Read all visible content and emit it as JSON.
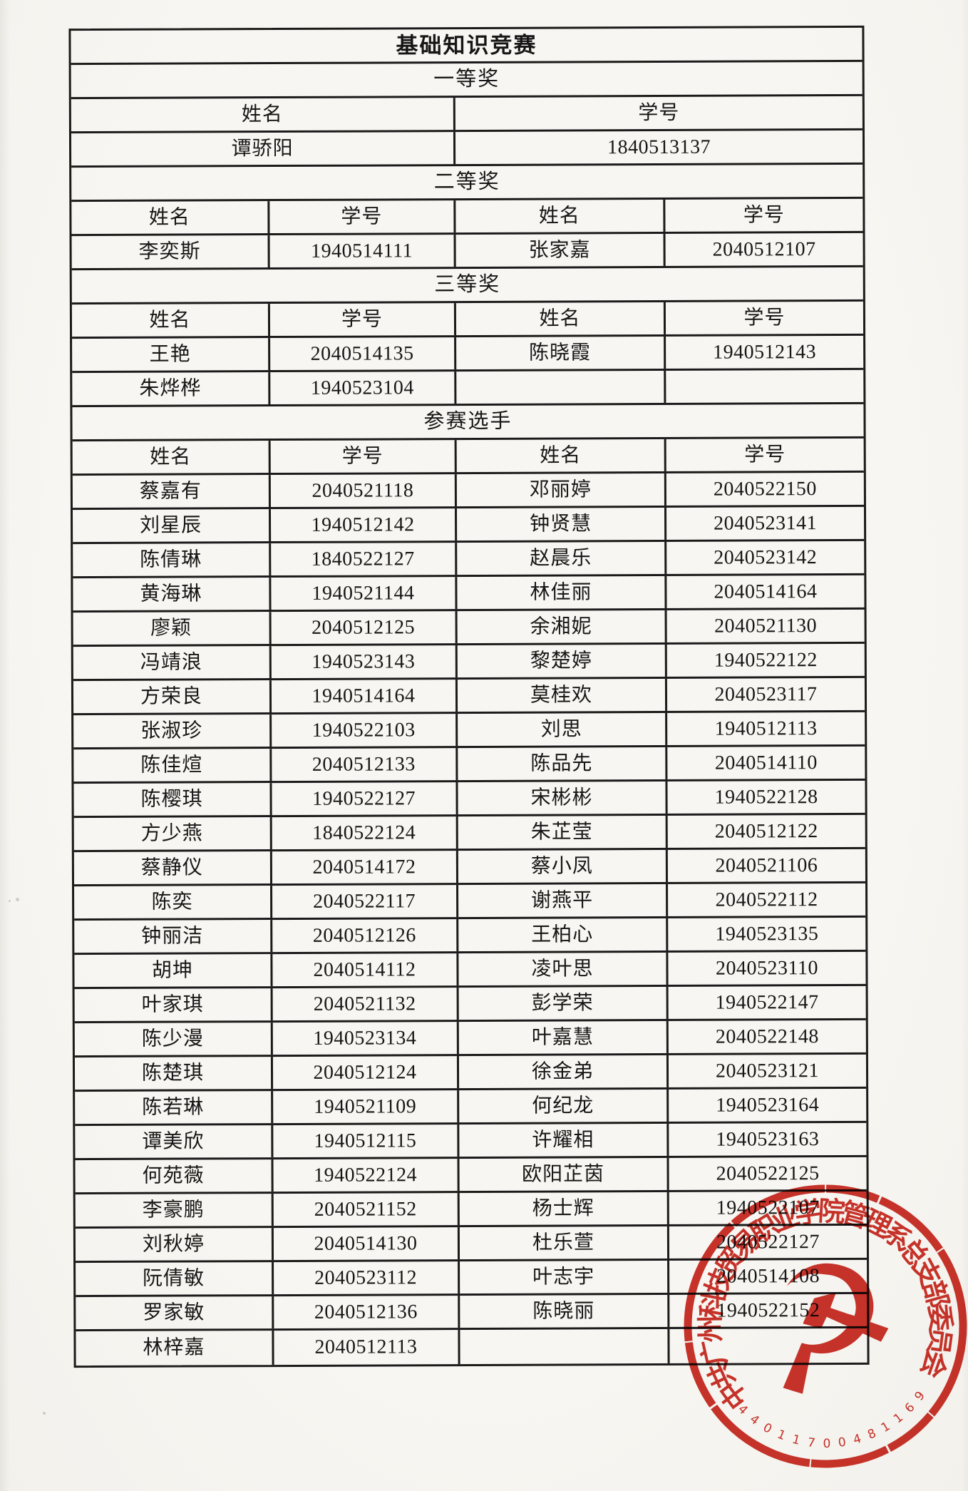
{
  "document": {
    "title": "基础知识竞赛",
    "headers": {
      "name": "姓名",
      "id": "学号"
    },
    "sections": [
      {
        "label": "一等奖",
        "layout": "two-col",
        "rows": [
          [
            "谭骄阳",
            "1840513137"
          ]
        ]
      },
      {
        "label": "二等奖",
        "layout": "four-col",
        "rows": [
          [
            "李奕斯",
            "1940514111",
            "张家嘉",
            "2040512107"
          ]
        ]
      },
      {
        "label": "三等奖",
        "layout": "four-col",
        "rows": [
          [
            "王艳",
            "2040514135",
            "陈晓霞",
            "1940512143"
          ],
          [
            "朱烨桦",
            "1940523104",
            "",
            ""
          ]
        ]
      },
      {
        "label": "参赛选手",
        "layout": "four-col",
        "rows": [
          [
            "蔡嘉有",
            "2040521118",
            "邓丽婷",
            "2040522150"
          ],
          [
            "刘星辰",
            "1940512142",
            "钟贤慧",
            "2040523141"
          ],
          [
            "陈倩琳",
            "1840522127",
            "赵晨乐",
            "2040523142"
          ],
          [
            "黄海琳",
            "1940521144",
            "林佳丽",
            "2040514164"
          ],
          [
            "廖颖",
            "2040512125",
            "余湘妮",
            "2040521130"
          ],
          [
            "冯靖浪",
            "1940523143",
            "黎楚婷",
            "1940522122"
          ],
          [
            "方荣良",
            "1940514164",
            "莫桂欢",
            "2040523117"
          ],
          [
            "张淑珍",
            "1940522103",
            "刘思",
            "1940512113"
          ],
          [
            "陈佳煊",
            "2040512133",
            "陈品先",
            "2040514110"
          ],
          [
            "陈樱琪",
            "1940522127",
            "宋彬彬",
            "1940522128"
          ],
          [
            "方少燕",
            "1840522124",
            "朱芷莹",
            "2040512122"
          ],
          [
            "蔡静仪",
            "2040514172",
            "蔡小凤",
            "2040521106"
          ],
          [
            "陈奕",
            "2040522117",
            "谢燕平",
            "2040522112"
          ],
          [
            "钟丽洁",
            "2040512126",
            "王柏心",
            "1940523135"
          ],
          [
            "胡坤",
            "2040514112",
            "凌叶思",
            "2040523110"
          ],
          [
            "叶家琪",
            "2040521132",
            "彭学荣",
            "1940522147"
          ],
          [
            "陈少漫",
            "1940523134",
            "叶嘉慧",
            "2040522148"
          ],
          [
            "陈楚琪",
            "2040512124",
            "徐金弟",
            "2040523121"
          ],
          [
            "陈若琳",
            "1940521109",
            "何纪龙",
            "1940523164"
          ],
          [
            "谭美欣",
            "1940512115",
            "许耀相",
            "1940523163"
          ],
          [
            "何苑薇",
            "1940522124",
            "欧阳芷茵",
            "2040522125"
          ],
          [
            "李豪鹏",
            "2040521152",
            "杨士辉",
            "1940522107"
          ],
          [
            "刘秋婷",
            "2040514130",
            "杜乐萱",
            "2040522127"
          ],
          [
            "阮倩敏",
            "2040523112",
            "叶志宇",
            "2040514108"
          ],
          [
            "罗家敏",
            "2040512136",
            "陈晓丽",
            "1940522152"
          ],
          [
            "林梓嘉",
            "2040512113",
            "",
            ""
          ]
        ]
      }
    ]
  },
  "stamp": {
    "ring_text": "中共广州科技贸易职业学院管理系总支部委员会",
    "serial": "44011700481169",
    "emblem": "☭",
    "color": "#c8241a"
  }
}
